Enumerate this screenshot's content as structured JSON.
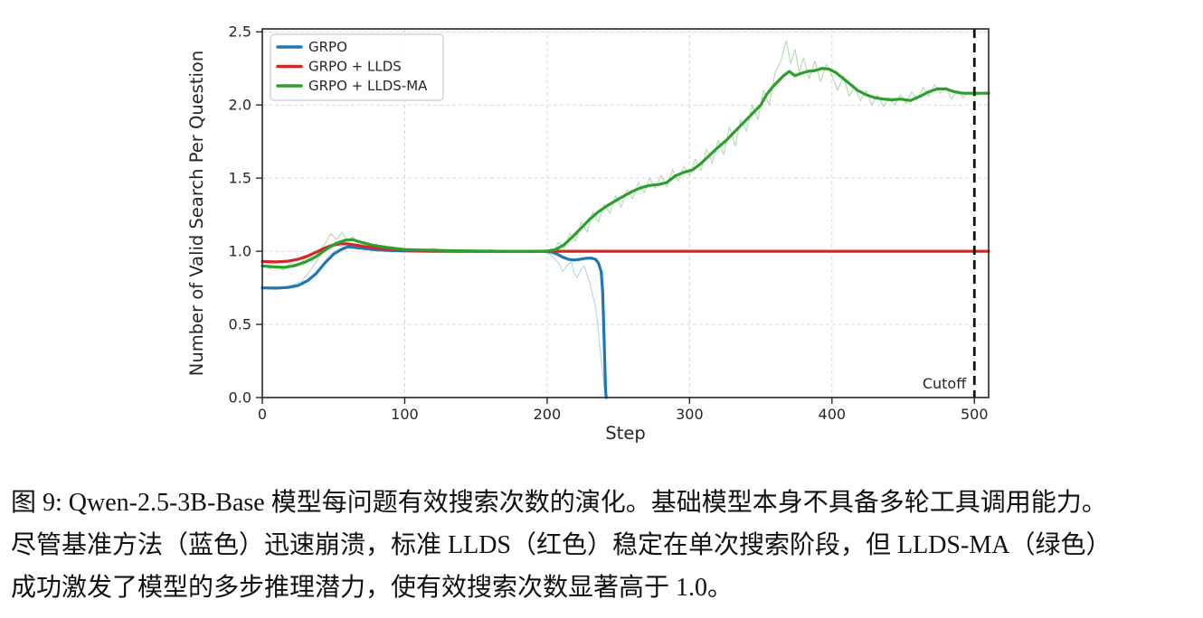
{
  "figure": {
    "caption_lines": [
      "图 9: Qwen-2.5-3B-Base 模型每问题有效搜索次数的演化。基础模型本身不具备多轮工具调用能力。",
      "尽管基准方法（蓝色）迅速崩溃，标准 LLDS（红色）稳定在单次搜索阶段，但 LLDS-MA（绿色）",
      "成功激发了模型的多步推理潜力，使有效搜索次数显著高于 1.0。"
    ]
  },
  "chart_data": {
    "type": "line",
    "title": "",
    "xlabel": "Step",
    "ylabel": "Number of Valid Search Per Question",
    "xlim": [
      0,
      510
    ],
    "ylim": [
      0,
      2.52
    ],
    "xticks": [
      0,
      100,
      200,
      300,
      400,
      500
    ],
    "yticks": [
      0.0,
      0.5,
      1.0,
      1.5,
      2.0,
      2.5
    ],
    "grid": true,
    "legend_position": "upper left",
    "colors": {
      "blue": "#1f77b4",
      "red": "#d62728",
      "green": "#2ca02c",
      "cutoff": "#111111"
    },
    "cutoff": {
      "x": 500,
      "label": "Cutoff"
    },
    "series": [
      {
        "id": "grpo-raw",
        "name": "GRPO (raw)",
        "color": "#1f77b4",
        "width": 1.2,
        "opacity": 0.3,
        "legend": false,
        "points": [
          [
            0,
            0.752
          ],
          [
            8,
            0.744
          ],
          [
            16,
            0.758
          ],
          [
            22,
            0.77
          ],
          [
            28,
            0.8
          ],
          [
            33,
            0.86
          ],
          [
            38,
            0.93
          ],
          [
            42,
            0.99
          ],
          [
            47,
            1.02
          ],
          [
            52,
            1.04
          ],
          [
            58,
            1.03
          ],
          [
            66,
            1.02
          ],
          [
            76,
            1.01
          ],
          [
            90,
            1.004
          ],
          [
            110,
            1.0
          ],
          [
            140,
            1.0
          ],
          [
            170,
            1.0
          ],
          [
            190,
            1.0
          ],
          [
            198,
            0.995
          ],
          [
            202,
            0.98
          ],
          [
            205,
            0.95
          ],
          [
            208,
            0.92
          ],
          [
            211,
            0.86
          ],
          [
            214,
            0.9
          ],
          [
            217,
            0.93
          ],
          [
            219,
            0.85
          ],
          [
            221,
            0.82
          ],
          [
            224,
            0.88
          ],
          [
            226,
            0.9
          ],
          [
            228,
            0.84
          ],
          [
            230,
            0.78
          ],
          [
            232,
            0.7
          ],
          [
            234,
            0.62
          ],
          [
            236,
            0.45
          ],
          [
            238,
            0.25
          ],
          [
            240,
            0.08
          ],
          [
            241.5,
            0.0
          ]
        ]
      },
      {
        "id": "llds-raw",
        "name": "GRPO + LLDS (raw)",
        "color": "#d62728",
        "width": 1.2,
        "opacity": 0.25,
        "legend": false,
        "points": [
          [
            0,
            0.924
          ],
          [
            8,
            0.914
          ],
          [
            16,
            0.93
          ],
          [
            24,
            0.944
          ],
          [
            32,
            0.972
          ],
          [
            40,
            1.005
          ],
          [
            46,
            1.04
          ],
          [
            52,
            1.062
          ],
          [
            58,
            1.058
          ],
          [
            64,
            1.042
          ],
          [
            72,
            1.03
          ],
          [
            80,
            1.022
          ],
          [
            90,
            1.012
          ],
          [
            100,
            1.008
          ],
          [
            120,
            1.002
          ],
          [
            140,
            1.0
          ]
        ]
      },
      {
        "id": "llds-ma-raw",
        "name": "GRPO + LLDS-MA (raw)",
        "color": "#2ca02c",
        "width": 1.2,
        "opacity": 0.35,
        "legend": false,
        "points": [
          [
            0,
            0.91
          ],
          [
            5,
            0.88
          ],
          [
            10,
            0.9
          ],
          [
            15,
            0.87
          ],
          [
            20,
            0.92
          ],
          [
            25,
            0.9
          ],
          [
            30,
            0.95
          ],
          [
            35,
            0.93
          ],
          [
            40,
            1.0
          ],
          [
            44,
            1.05
          ],
          [
            48,
            1.12
          ],
          [
            52,
            1.08
          ],
          [
            56,
            1.13
          ],
          [
            60,
            1.07
          ],
          [
            64,
            1.1
          ],
          [
            68,
            1.04
          ],
          [
            72,
            1.07
          ],
          [
            76,
            1.02
          ],
          [
            80,
            1.05
          ],
          [
            85,
            1.01
          ],
          [
            90,
            1.03
          ],
          [
            95,
            1.0
          ],
          [
            100,
            1.02
          ],
          [
            110,
            1.0
          ],
          [
            120,
            1.02
          ],
          [
            130,
            1.0
          ],
          [
            140,
            1.01
          ],
          [
            150,
            0.99
          ],
          [
            160,
            1.01
          ],
          [
            170,
            1.0
          ],
          [
            180,
            1.0
          ],
          [
            190,
            1.0
          ],
          [
            200,
            1.01
          ],
          [
            204,
            0.99
          ],
          [
            208,
            1.06
          ],
          [
            212,
            1.02
          ],
          [
            216,
            1.12
          ],
          [
            220,
            1.07
          ],
          [
            224,
            1.2
          ],
          [
            228,
            1.13
          ],
          [
            232,
            1.27
          ],
          [
            236,
            1.2
          ],
          [
            240,
            1.32
          ],
          [
            244,
            1.26
          ],
          [
            248,
            1.38
          ],
          [
            252,
            1.3
          ],
          [
            256,
            1.42
          ],
          [
            260,
            1.36
          ],
          [
            264,
            1.47
          ],
          [
            268,
            1.4
          ],
          [
            272,
            1.5
          ],
          [
            276,
            1.43
          ],
          [
            280,
            1.52
          ],
          [
            284,
            1.44
          ],
          [
            288,
            1.56
          ],
          [
            292,
            1.48
          ],
          [
            296,
            1.58
          ],
          [
            300,
            1.52
          ],
          [
            304,
            1.63
          ],
          [
            308,
            1.55
          ],
          [
            312,
            1.7
          ],
          [
            316,
            1.6
          ],
          [
            320,
            1.76
          ],
          [
            324,
            1.66
          ],
          [
            328,
            1.85
          ],
          [
            332,
            1.72
          ],
          [
            336,
            1.9
          ],
          [
            340,
            1.82
          ],
          [
            344,
            2.0
          ],
          [
            348,
            1.9
          ],
          [
            352,
            2.1
          ],
          [
            356,
            2.0
          ],
          [
            360,
            2.22
          ],
          [
            364,
            2.3
          ],
          [
            368,
            2.44
          ],
          [
            371,
            2.28
          ],
          [
            374,
            2.38
          ],
          [
            377,
            2.22
          ],
          [
            380,
            2.32
          ],
          [
            384,
            2.18
          ],
          [
            388,
            2.3
          ],
          [
            392,
            2.16
          ],
          [
            396,
            2.28
          ],
          [
            400,
            2.2
          ],
          [
            404,
            2.1
          ],
          [
            408,
            2.2
          ],
          [
            412,
            2.06
          ],
          [
            416,
            2.12
          ],
          [
            420,
            2.03
          ],
          [
            424,
            2.1
          ],
          [
            428,
            2.0
          ],
          [
            432,
            2.07
          ],
          [
            436,
            1.99
          ],
          [
            440,
            2.05
          ],
          [
            444,
            2.0
          ],
          [
            448,
            2.07
          ],
          [
            452,
            2.01
          ],
          [
            456,
            2.09
          ],
          [
            460,
            2.04
          ],
          [
            464,
            2.12
          ],
          [
            468,
            2.06
          ],
          [
            472,
            2.14
          ],
          [
            476,
            2.08
          ],
          [
            480,
            2.12
          ],
          [
            484,
            2.04
          ],
          [
            488,
            2.1
          ],
          [
            492,
            2.05
          ],
          [
            496,
            2.09
          ],
          [
            500,
            2.06
          ],
          [
            505,
            2.08
          ],
          [
            510,
            2.07
          ]
        ]
      },
      {
        "id": "grpo",
        "name": "GRPO",
        "color": "#1f77b4",
        "width": 3.2,
        "opacity": 1,
        "legend": true,
        "points": [
          [
            0,
            0.75
          ],
          [
            10,
            0.748
          ],
          [
            18,
            0.752
          ],
          [
            25,
            0.765
          ],
          [
            32,
            0.8
          ],
          [
            38,
            0.85
          ],
          [
            44,
            0.92
          ],
          [
            50,
            0.98
          ],
          [
            55,
            1.01
          ],
          [
            60,
            1.03
          ],
          [
            66,
            1.025
          ],
          [
            72,
            1.018
          ],
          [
            80,
            1.01
          ],
          [
            90,
            1.005
          ],
          [
            100,
            1.002
          ],
          [
            120,
            1.0
          ],
          [
            150,
            1.0
          ],
          [
            180,
            1.0
          ],
          [
            198,
            1.0
          ],
          [
            203,
            0.995
          ],
          [
            207,
            0.98
          ],
          [
            211,
            0.96
          ],
          [
            215,
            0.945
          ],
          [
            219,
            0.94
          ],
          [
            223,
            0.945
          ],
          [
            227,
            0.952
          ],
          [
            231,
            0.953
          ],
          [
            234,
            0.945
          ],
          [
            236,
            0.92
          ],
          [
            238,
            0.86
          ],
          [
            239,
            0.72
          ],
          [
            240,
            0.4
          ],
          [
            241,
            0.05
          ],
          [
            241.5,
            0.0
          ]
        ]
      },
      {
        "id": "llds",
        "name": "GRPO + LLDS",
        "color": "#d62728",
        "width": 3.2,
        "opacity": 1,
        "legend": true,
        "points": [
          [
            0,
            0.93
          ],
          [
            10,
            0.928
          ],
          [
            18,
            0.932
          ],
          [
            25,
            0.945
          ],
          [
            32,
            0.968
          ],
          [
            38,
            0.995
          ],
          [
            44,
            1.022
          ],
          [
            50,
            1.042
          ],
          [
            55,
            1.052
          ],
          [
            60,
            1.05
          ],
          [
            66,
            1.042
          ],
          [
            72,
            1.032
          ],
          [
            80,
            1.022
          ],
          [
            90,
            1.013
          ],
          [
            100,
            1.008
          ],
          [
            115,
            1.003
          ],
          [
            130,
            1.001
          ],
          [
            150,
            1.0
          ],
          [
            200,
            1.0
          ],
          [
            260,
            1.0
          ],
          [
            320,
            1.0
          ],
          [
            380,
            1.0
          ],
          [
            440,
            1.0
          ],
          [
            510,
            1.0
          ]
        ]
      },
      {
        "id": "llds-ma",
        "name": "GRPO + LLDS-MA",
        "color": "#2ca02c",
        "width": 3.2,
        "opacity": 1,
        "legend": true,
        "points": [
          [
            0,
            0.9
          ],
          [
            8,
            0.893
          ],
          [
            15,
            0.89
          ],
          [
            22,
            0.9
          ],
          [
            30,
            0.925
          ],
          [
            38,
            0.965
          ],
          [
            45,
            1.015
          ],
          [
            52,
            1.055
          ],
          [
            58,
            1.075
          ],
          [
            63,
            1.08
          ],
          [
            70,
            1.06
          ],
          [
            78,
            1.04
          ],
          [
            88,
            1.025
          ],
          [
            100,
            1.012
          ],
          [
            115,
            1.008
          ],
          [
            130,
            1.005
          ],
          [
            150,
            1.001
          ],
          [
            170,
            1.0
          ],
          [
            190,
            1.0
          ],
          [
            200,
            1.002
          ],
          [
            206,
            1.012
          ],
          [
            212,
            1.045
          ],
          [
            218,
            1.1
          ],
          [
            224,
            1.16
          ],
          [
            230,
            1.22
          ],
          [
            236,
            1.27
          ],
          [
            242,
            1.31
          ],
          [
            248,
            1.345
          ],
          [
            254,
            1.378
          ],
          [
            260,
            1.41
          ],
          [
            266,
            1.435
          ],
          [
            272,
            1.45
          ],
          [
            278,
            1.456
          ],
          [
            284,
            1.47
          ],
          [
            290,
            1.515
          ],
          [
            296,
            1.54
          ],
          [
            302,
            1.556
          ],
          [
            308,
            1.6
          ],
          [
            314,
            1.655
          ],
          [
            320,
            1.71
          ],
          [
            326,
            1.76
          ],
          [
            332,
            1.82
          ],
          [
            338,
            1.88
          ],
          [
            344,
            1.94
          ],
          [
            350,
            2.0
          ],
          [
            354,
            2.07
          ],
          [
            358,
            2.12
          ],
          [
            362,
            2.16
          ],
          [
            366,
            2.2
          ],
          [
            370,
            2.23
          ],
          [
            374,
            2.2
          ],
          [
            378,
            2.215
          ],
          [
            383,
            2.23
          ],
          [
            388,
            2.235
          ],
          [
            393,
            2.25
          ],
          [
            398,
            2.245
          ],
          [
            403,
            2.22
          ],
          [
            408,
            2.18
          ],
          [
            413,
            2.14
          ],
          [
            418,
            2.1
          ],
          [
            424,
            2.07
          ],
          [
            430,
            2.05
          ],
          [
            436,
            2.04
          ],
          [
            442,
            2.035
          ],
          [
            448,
            2.04
          ],
          [
            455,
            2.03
          ],
          [
            462,
            2.06
          ],
          [
            468,
            2.09
          ],
          [
            474,
            2.11
          ],
          [
            480,
            2.11
          ],
          [
            486,
            2.09
          ],
          [
            492,
            2.08
          ],
          [
            500,
            2.08
          ],
          [
            510,
            2.08
          ]
        ]
      }
    ]
  }
}
